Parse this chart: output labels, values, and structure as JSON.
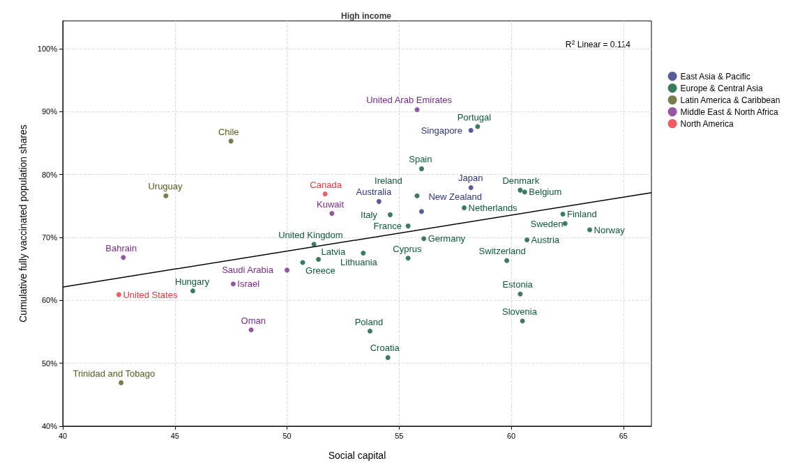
{
  "chart_data": {
    "type": "scatter",
    "title": "High income",
    "xlabel": "Social capital",
    "ylabel": "Cumulative fully vaccinated population shares",
    "xlim": [
      40,
      66.25
    ],
    "ylim": [
      40,
      104.4
    ],
    "xticks": [
      40,
      45,
      50,
      55,
      60,
      65
    ],
    "yticks": [
      {
        "value": 40,
        "label": "40%"
      },
      {
        "value": 50,
        "label": "50%"
      },
      {
        "value": 60,
        "label": "60%"
      },
      {
        "value": 70,
        "label": "70%"
      },
      {
        "value": 80,
        "label": "80%"
      },
      {
        "value": 90,
        "label": "90%"
      },
      {
        "value": 100,
        "label": "100%"
      }
    ],
    "grid": true,
    "legend": "right",
    "marker": "circle",
    "series": [
      {
        "name": "East Asia & Pacific",
        "color": "#2e3580",
        "x": [
          58.2,
          58.2,
          54.1,
          56.0
        ],
        "values": [
          87.0,
          77.9,
          75.7,
          74.1
        ]
      },
      {
        "name": "Europe & Central Asia",
        "color": "#0b5a36",
        "x": [
          58.5,
          56.0,
          55.8,
          60.4,
          60.6,
          57.9,
          54.6,
          55.4,
          62.3,
          62.4,
          63.5,
          60.7,
          56.1,
          53.4,
          55.4,
          59.8,
          60.4,
          51.2,
          50.7,
          51.4,
          45.8,
          53.7,
          54.5,
          60.5
        ],
        "values": [
          87.6,
          80.9,
          76.6,
          77.5,
          77.2,
          74.7,
          73.6,
          71.8,
          73.7,
          72.2,
          71.2,
          69.6,
          69.8,
          67.5,
          66.7,
          66.3,
          61.0,
          68.9,
          66.0,
          66.5,
          61.5,
          55.1,
          50.9,
          56.7
        ]
      },
      {
        "name": "Latin America & Caribbean",
        "color": "#5a5a1e",
        "x": [
          47.5,
          44.6,
          42.6
        ],
        "values": [
          85.3,
          76.6,
          46.9
        ]
      },
      {
        "name": "Middle East & North Africa",
        "color": "#7a2a8c",
        "x": [
          55.8,
          52.0,
          50.0,
          42.7,
          47.6,
          48.4
        ],
        "values": [
          90.3,
          73.8,
          64.8,
          66.8,
          62.6,
          55.3
        ]
      },
      {
        "name": "North America",
        "color": "#e8353a",
        "x": [
          51.7,
          42.5
        ],
        "values": [
          76.9,
          60.9
        ]
      },
      {
        "type": "line",
        "marker": "none",
        "color": "#000000",
        "x": [
          40,
          66.25
        ],
        "values": [
          62.1,
          77.1
        ]
      }
    ],
    "annotations": [
      "R$^{2}$ Linear = 0.114",
      {
        "text": "Singapore",
        "x": 58.2,
        "y": 87.0
      },
      {
        "text": "Japan",
        "x": 58.2,
        "y": 77.9
      },
      {
        "text": "Australia",
        "x": 54.1,
        "y": 75.7
      },
      {
        "text": "New Zealand",
        "x": 56.0,
        "y": 74.1
      },
      {
        "text": "Portugal",
        "x": 58.5,
        "y": 87.6
      },
      {
        "text": "Spain",
        "x": 56.0,
        "y": 80.9
      },
      {
        "text": "Ireland",
        "x": 55.8,
        "y": 76.6
      },
      {
        "text": "Denmark",
        "x": 60.4,
        "y": 77.5
      },
      {
        "text": "Belgium",
        "x": 60.6,
        "y": 77.2
      },
      {
        "text": "Netherlands",
        "x": 57.9,
        "y": 74.7
      },
      {
        "text": "Italy",
        "x": 54.6,
        "y": 73.6
      },
      {
        "text": "France",
        "x": 55.4,
        "y": 71.8
      },
      {
        "text": "Finland",
        "x": 62.3,
        "y": 73.7
      },
      {
        "text": "Sweden",
        "x": 62.4,
        "y": 72.2
      },
      {
        "text": "Norway",
        "x": 63.5,
        "y": 71.2
      },
      {
        "text": "Austria",
        "x": 60.7,
        "y": 69.6
      },
      {
        "text": "Germany",
        "x": 56.1,
        "y": 69.8
      },
      {
        "text": "Lithuania",
        "x": 53.4,
        "y": 67.5
      },
      {
        "text": "Cyprus",
        "x": 55.4,
        "y": 66.7
      },
      {
        "text": "Switzerland",
        "x": 59.8,
        "y": 66.3
      },
      {
        "text": "Estonia",
        "x": 60.4,
        "y": 61.0
      },
      {
        "text": "United Kingdom",
        "x": 51.2,
        "y": 68.9
      },
      {
        "text": "Greece",
        "x": 50.7,
        "y": 66.0
      },
      {
        "text": "Latvia",
        "x": 51.4,
        "y": 66.5
      },
      {
        "text": "Hungary",
        "x": 45.8,
        "y": 61.5
      },
      {
        "text": "Poland",
        "x": 53.7,
        "y": 55.1
      },
      {
        "text": "Croatia",
        "x": 54.5,
        "y": 50.9
      },
      {
        "text": "Slovenia",
        "x": 60.5,
        "y": 56.7
      },
      {
        "text": "Chile",
        "x": 47.5,
        "y": 85.3
      },
      {
        "text": "Uruguay",
        "x": 44.6,
        "y": 76.6
      },
      {
        "text": "Trinidad and Tobago",
        "x": 42.6,
        "y": 46.9
      },
      {
        "text": "United Arab Emirates",
        "x": 55.8,
        "y": 90.3
      },
      {
        "text": "Kuwait",
        "x": 52.0,
        "y": 73.8
      },
      {
        "text": "Saudi Arabia",
        "x": 50.0,
        "y": 64.8
      },
      {
        "text": "Bahrain",
        "x": 42.7,
        "y": 66.8
      },
      {
        "text": "Israel",
        "x": 47.6,
        "y": 62.6
      },
      {
        "text": "Oman",
        "x": 48.4,
        "y": 55.3
      },
      {
        "text": "Canada",
        "x": 51.7,
        "y": 76.9
      },
      {
        "text": "United States",
        "x": 42.5,
        "y": 60.9
      }
    ]
  }
}
